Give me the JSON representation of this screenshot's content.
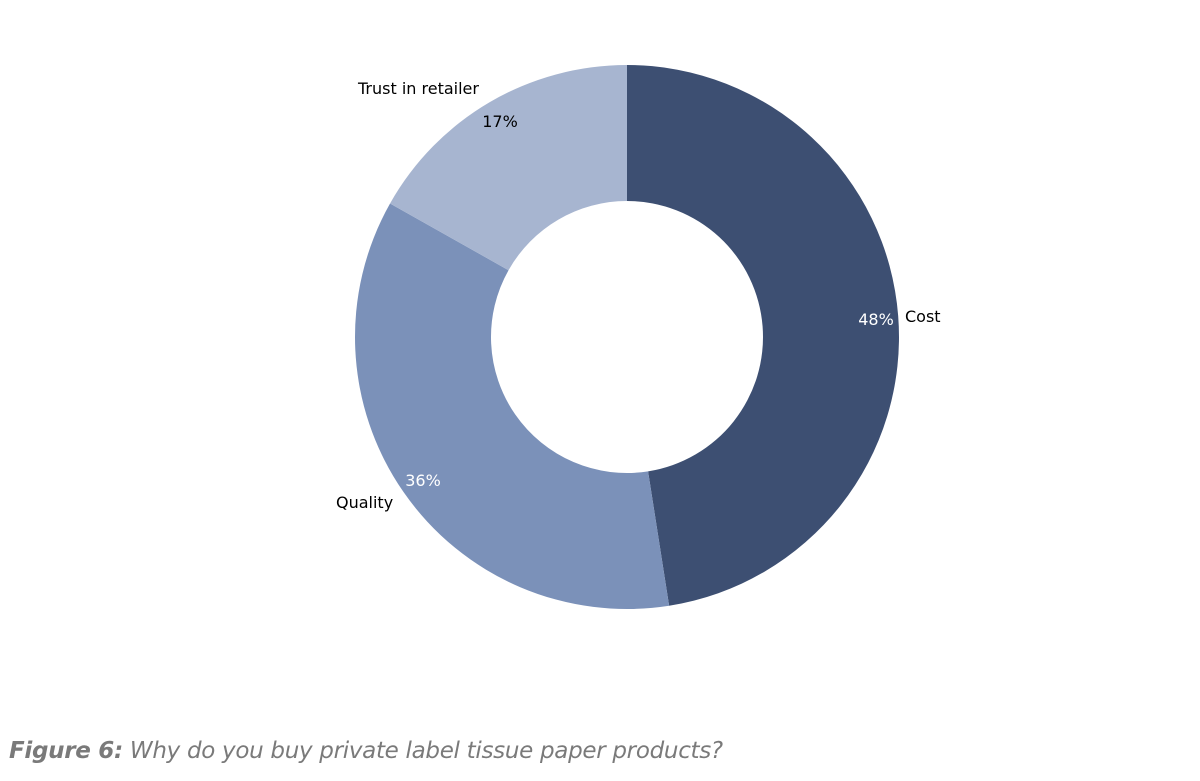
{
  "caption": {
    "figure_label": "Figure 6:",
    "text": " Why do you buy private label tissue paper products?"
  },
  "chart_data": {
    "type": "pie",
    "donut": true,
    "title": "",
    "start_angle_deg": 0,
    "direction": "clockwise",
    "slices": [
      {
        "label": "Cost",
        "value": 48,
        "value_label": "48%",
        "color": "#3d4f72",
        "value_label_color": "#ffffff"
      },
      {
        "label": "Quality",
        "value": 36,
        "value_label": "36%",
        "color": "#7b91b9",
        "value_label_color": "#ffffff"
      },
      {
        "label": "Trust in retailer",
        "value": 17,
        "value_label": "17%",
        "color": "#a7b5d0",
        "value_label_color": "#000000"
      }
    ]
  }
}
